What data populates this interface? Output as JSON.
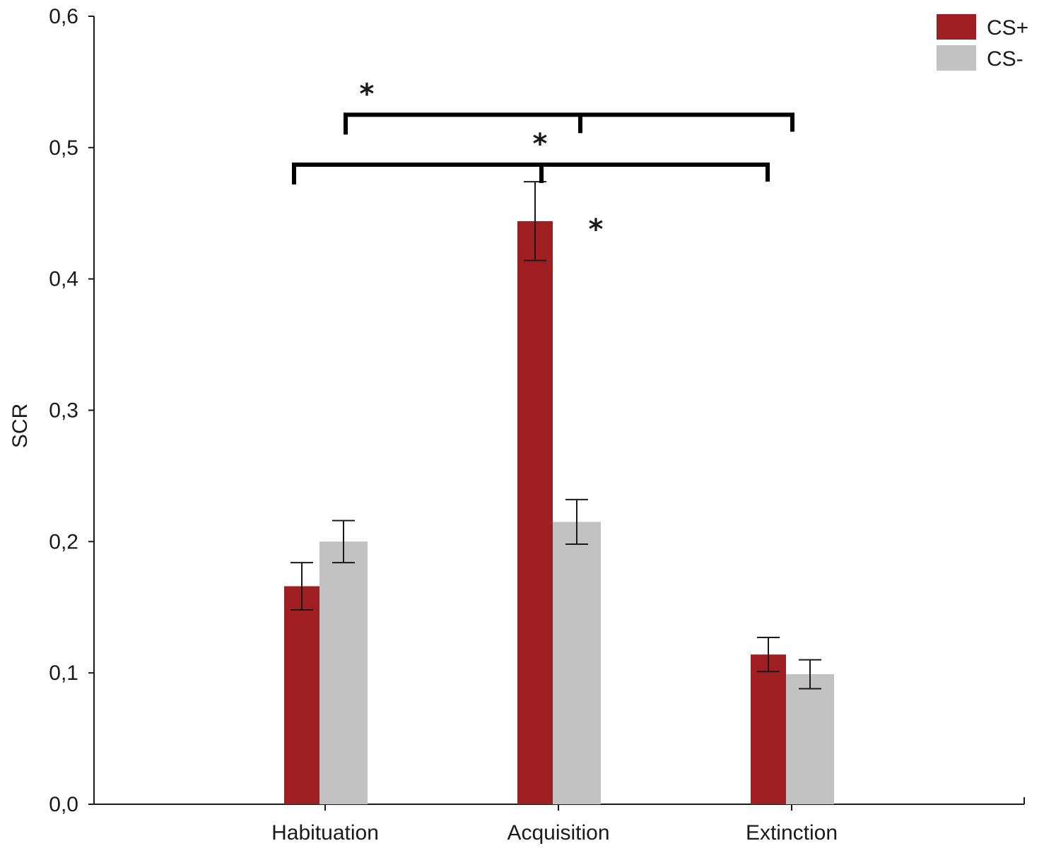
{
  "chart_data": {
    "type": "bar",
    "title": "",
    "xlabel": "",
    "ylabel": "SCR",
    "ylim": [
      0,
      0.6
    ],
    "yticks": [
      0.0,
      0.1,
      0.2,
      0.3,
      0.4,
      0.5,
      0.6
    ],
    "ytick_labels": [
      "0,0",
      "0,1",
      "0,2",
      "0,3",
      "0,4",
      "0,5",
      "0,6"
    ],
    "categories": [
      "Habituation",
      "Acquisition",
      "Extinction"
    ],
    "series": [
      {
        "name": "CS+",
        "color": "#9e1e22",
        "values": [
          0.166,
          0.444,
          0.114
        ],
        "errors": [
          0.018,
          0.03,
          0.013
        ]
      },
      {
        "name": "CS-",
        "color": "#c2c2c2",
        "values": [
          0.2,
          0.215,
          0.099
        ],
        "errors": [
          0.016,
          0.017,
          0.011
        ]
      }
    ],
    "legend": "top-right",
    "grid": false,
    "significance": [
      {
        "from": 0,
        "to": 2,
        "level": 0.525,
        "label": "*"
      },
      {
        "from": 0,
        "to": 2,
        "level": 0.487,
        "label": "*"
      },
      {
        "category": 1,
        "level": 0.438,
        "label": "*"
      }
    ]
  }
}
